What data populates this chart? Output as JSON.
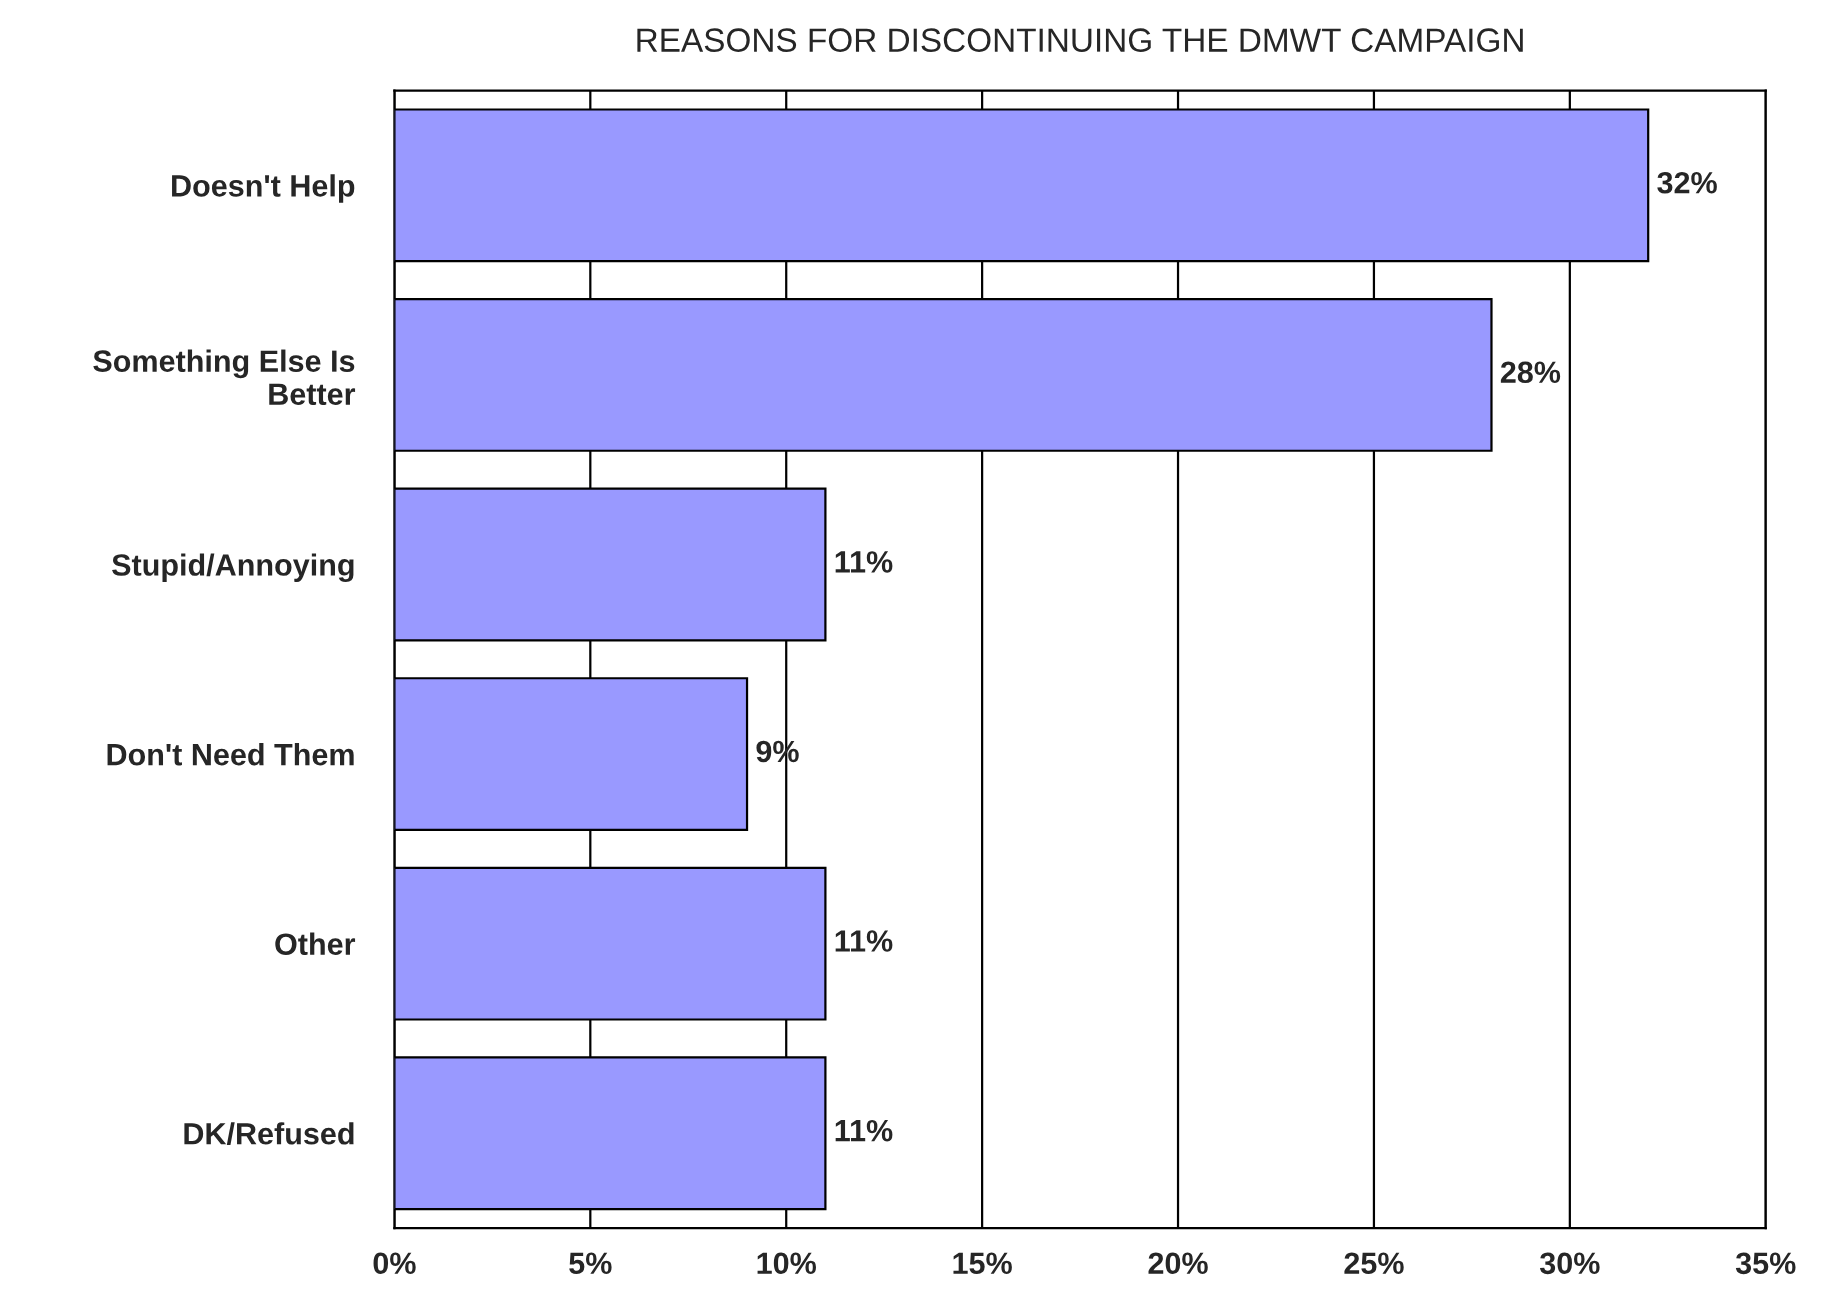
{
  "chart_data": {
    "type": "bar",
    "orientation": "horizontal",
    "title": "REASONS FOR DISCONTINUING THE DMWT CAMPAIGN",
    "categories": [
      "Doesn't Help",
      "Something Else Is\nBetter",
      "Stupid/Annoying",
      "Don't Need Them",
      "Other",
      "DK/Refused"
    ],
    "values": [
      32,
      28,
      11,
      9,
      11,
      11
    ],
    "value_labels": [
      "32%",
      "28%",
      "11%",
      "9%",
      "11%",
      "11%"
    ],
    "color": "#9999ff",
    "xlim": [
      0,
      35
    ],
    "xticks": [
      {
        "value": 0,
        "label": "0%"
      },
      {
        "value": 5,
        "label": "5%"
      },
      {
        "value": 10,
        "label": "10%"
      },
      {
        "value": 15,
        "label": "15%"
      },
      {
        "value": 20,
        "label": "20%"
      },
      {
        "value": 25,
        "label": "25%"
      },
      {
        "value": 30,
        "label": "30%"
      },
      {
        "value": 35,
        "label": "35%"
      }
    ],
    "grid": "x"
  }
}
